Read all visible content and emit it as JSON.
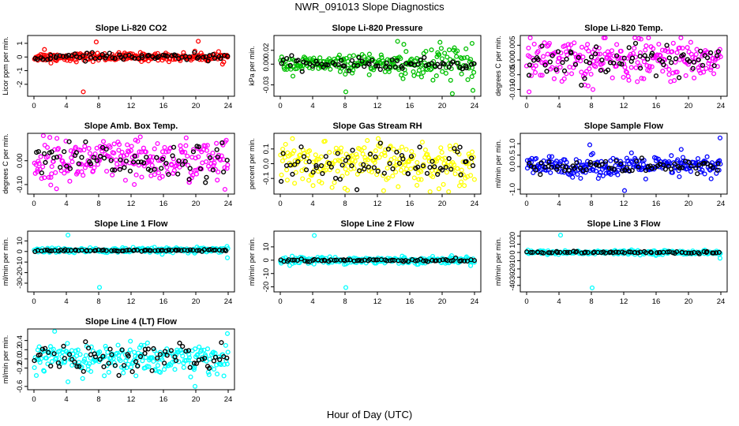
{
  "title": "NWR_091013  Slope Diagnostics",
  "xlabel": "Hour of Day (UTC)",
  "colors": {
    "red": "#ff0000",
    "green": "#00c000",
    "magenta": "#ff00ff",
    "yellow": "#ffff00",
    "blue": "#0000ff",
    "cyan": "#00ffff",
    "black": "#000000"
  },
  "chart_data": [
    {
      "type": "scatter",
      "title": "Slope Li-820 CO2",
      "ylabel": "Licor ppm per min.",
      "color": "red",
      "xlim": [
        0,
        24
      ],
      "ylim": [
        -2.7,
        1.4
      ],
      "xticks": [
        0,
        4,
        8,
        12,
        16,
        20,
        24
      ],
      "yticks": [
        {
          "v": -2,
          "label": "-2"
        },
        {
          "v": -1,
          "label": "-1"
        },
        {
          "v": 0,
          "label": "0"
        },
        {
          "v": 1,
          "label": "1"
        }
      ],
      "spread": 0.15,
      "black_spread": 0.12,
      "outliers": [
        [
          6.1,
          -2.55
        ],
        [
          7.7,
          1.1
        ],
        [
          20.3,
          1.15
        ],
        [
          2.1,
          -0.45
        ],
        [
          1.3,
          0.55
        ]
      ]
    },
    {
      "type": "scatter",
      "title": "Slope Li-820 Pressure",
      "ylabel": "kPa per min.",
      "color": "green",
      "xlim": [
        0,
        24
      ],
      "ylim": [
        -0.043,
        0.038
      ],
      "xticks": [
        0,
        4,
        8,
        12,
        16,
        20,
        24
      ],
      "yticks": [
        {
          "v": -0.03,
          "label": "-0.03"
        },
        {
          "v": 0,
          "label": "0.00"
        },
        {
          "v": 0.02,
          "label": "0.02"
        }
      ],
      "spread": 0.006,
      "black_spread": 0.004,
      "spread_late": 0.015,
      "outliers": [
        [
          8.1,
          -0.04
        ],
        [
          14.5,
          0.033
        ],
        [
          23.7,
          0.03
        ],
        [
          23.8,
          -0.038
        ]
      ]
    },
    {
      "type": "scatter",
      "title": "Slope Li-820 Temp.",
      "ylabel": "degrees C per min.",
      "color": "magenta",
      "xlim": [
        0,
        24
      ],
      "ylim": [
        -0.0115,
        0.0075
      ],
      "xticks": [
        0,
        4,
        8,
        12,
        16,
        20,
        24
      ],
      "yticks": [
        {
          "v": -0.01,
          "label": "-0.010"
        },
        {
          "v": -0.005,
          "label": "-0.005"
        },
        {
          "v": 0,
          "label": "0.000"
        },
        {
          "v": 0.005,
          "label": "0.005"
        }
      ],
      "spread": 0.0035,
      "black_spread": 0.003,
      "outliers": [
        [
          0.3,
          -0.0108
        ],
        [
          8.2,
          -0.01
        ],
        [
          7.6,
          -0.0088
        ]
      ]
    },
    {
      "type": "scatter",
      "title": "Slope Amb. Box Temp.",
      "ylabel": "degrees C per min.",
      "color": "magenta",
      "xlim": [
        0,
        24
      ],
      "ylim": [
        -0.13,
        0.105
      ],
      "xticks": [
        0,
        4,
        8,
        12,
        16,
        20,
        24
      ],
      "yticks": [
        {
          "v": -0.1,
          "label": "-0.10"
        },
        {
          "v": 0,
          "label": "0.00"
        }
      ],
      "spread": 0.045,
      "black_spread": 0.035,
      "outliers": [
        [
          23.6,
          -0.12
        ],
        [
          2.1,
          -0.07
        ],
        [
          12.4,
          -0.1
        ],
        [
          19.2,
          -0.08
        ]
      ]
    },
    {
      "type": "scatter",
      "title": "Slope Gas Stream RH",
      "ylabel": "percent per min.",
      "color": "yellow",
      "xlim": [
        0,
        24
      ],
      "ylim": [
        -0.19,
        0.19
      ],
      "xticks": [
        0,
        4,
        8,
        12,
        16,
        20,
        24
      ],
      "yticks": [
        {
          "v": -0.1,
          "label": "-0.1"
        },
        {
          "v": 0,
          "label": "0.0"
        },
        {
          "v": 0.1,
          "label": "0.1"
        }
      ],
      "spread": 0.07,
      "black_spread": 0.06,
      "outliers": [
        [
          1.5,
          0.17
        ],
        [
          8.3,
          -0.18
        ],
        [
          12.1,
          0.17
        ],
        [
          19.6,
          -0.17
        ]
      ]
    },
    {
      "type": "scatter",
      "title": "Slope Sample Flow",
      "ylabel": "ml/min per min.",
      "color": "blue",
      "xlim": [
        0,
        24
      ],
      "ylim": [
        -1.1,
        1.35
      ],
      "xticks": [
        0,
        4,
        8,
        12,
        16,
        20,
        24
      ],
      "yticks": [
        {
          "v": -1,
          "label": "-1.0"
        },
        {
          "v": 0,
          "label": "0.0"
        },
        {
          "v": 0.5,
          "label": "0.5"
        },
        {
          "v": 1,
          "label": "1.0"
        }
      ],
      "spread": 0.22,
      "black_spread": 0.15,
      "outliers": [
        [
          23.9,
          1.25
        ],
        [
          12.1,
          -1.05
        ],
        [
          7.8,
          0.95
        ],
        [
          19.1,
          0.75
        ]
      ]
    },
    {
      "type": "scatter",
      "title": "Slope Line 1 Flow",
      "ylabel": "ml/min per min.",
      "color": "cyan",
      "xlim": [
        0,
        24
      ],
      "ylim": [
        -36,
        17
      ],
      "xticks": [
        0,
        4,
        8,
        12,
        16,
        20,
        24
      ],
      "yticks": [
        {
          "v": -30,
          "label": "-30"
        },
        {
          "v": -20,
          "label": "-20"
        },
        {
          "v": -10,
          "label": "-10"
        },
        {
          "v": 0,
          "label": "0"
        },
        {
          "v": 10,
          "label": "10"
        }
      ],
      "center": 1,
      "spread": 1.2,
      "black_spread": 0.5,
      "outliers": [
        [
          4.2,
          15.5
        ],
        [
          8.1,
          -34
        ],
        [
          23.9,
          -6
        ]
      ]
    },
    {
      "type": "scatter",
      "title": "Slope Line 2 Flow",
      "ylabel": "ml/min per min.",
      "color": "cyan",
      "xlim": [
        0,
        24
      ],
      "ylim": [
        -22,
        20
      ],
      "xticks": [
        0,
        4,
        8,
        12,
        16,
        20,
        24
      ],
      "yticks": [
        {
          "v": -20,
          "label": "-20"
        },
        {
          "v": -10,
          "label": "-10"
        },
        {
          "v": 0,
          "label": "0"
        },
        {
          "v": 10,
          "label": "10"
        }
      ],
      "center": 0,
      "spread": 1.2,
      "black_spread": 0.6,
      "outliers": [
        [
          4.2,
          18.5
        ],
        [
          8.1,
          -20.5
        ]
      ]
    },
    {
      "type": "scatter",
      "title": "Slope Line 3 Flow",
      "ylabel": "ml/min per min.",
      "color": "cyan",
      "xlim": [
        0,
        24
      ],
      "ylim": [
        -45,
        23
      ],
      "xticks": [
        0,
        4,
        8,
        12,
        16,
        20,
        24
      ],
      "yticks": [
        {
          "v": -40,
          "label": "-40"
        },
        {
          "v": -30,
          "label": "-30"
        },
        {
          "v": -20,
          "label": "-20"
        },
        {
          "v": -10,
          "label": "-10"
        },
        {
          "v": 0,
          "label": "0"
        },
        {
          "v": 10,
          "label": "10"
        },
        {
          "v": 20,
          "label": "20"
        }
      ],
      "center": 0,
      "spread": 1.2,
      "black_spread": 0.6,
      "outliers": [
        [
          4.2,
          21
        ],
        [
          8.1,
          -43
        ],
        [
          23.9,
          -7
        ]
      ]
    },
    {
      "type": "scatter",
      "title": "Slope Line 4 (LT) Flow",
      "ylabel": "ml/min per min.",
      "color": "cyan",
      "xlim": [
        0,
        24
      ],
      "ylim": [
        -0.62,
        0.6
      ],
      "xticks": [
        0,
        4,
        8,
        12,
        16,
        20,
        24
      ],
      "yticks": [
        {
          "v": -0.6,
          "label": "-0.6"
        },
        {
          "v": -0.2,
          "label": "-0.2"
        },
        {
          "v": 0,
          "label": "0.0"
        },
        {
          "v": 0.2,
          "label": "0.2"
        },
        {
          "v": 0.4,
          "label": "0.4"
        }
      ],
      "spread": 0.17,
      "black_spread": 0.15,
      "outliers": [
        [
          23.9,
          0.55
        ],
        [
          19.9,
          -0.6
        ],
        [
          4.2,
          -0.5
        ]
      ]
    }
  ]
}
